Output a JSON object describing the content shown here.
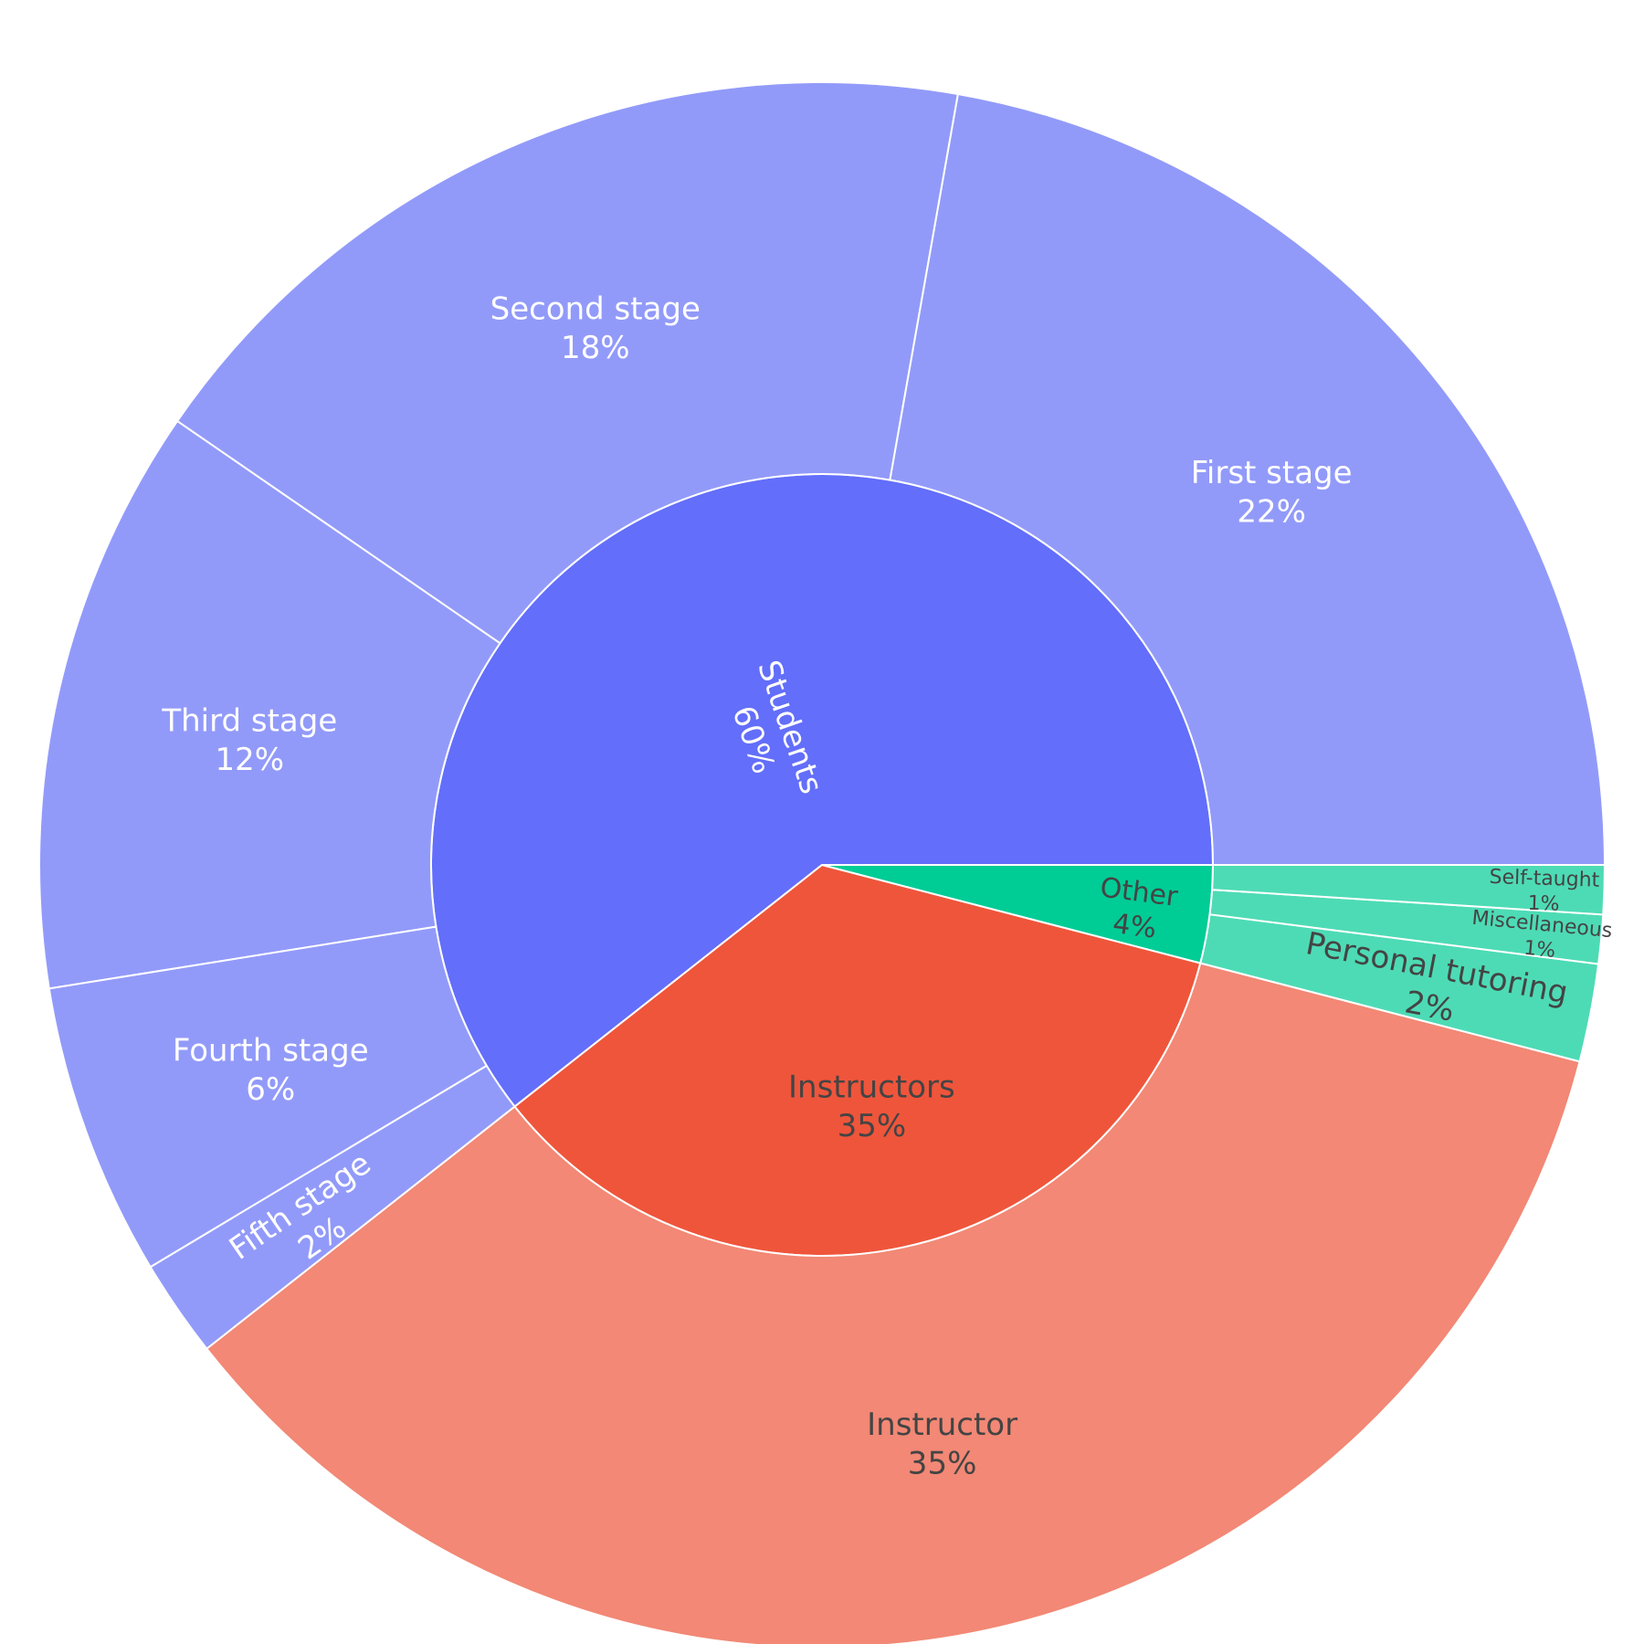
{
  "chart_data": {
    "type": "sunburst",
    "title": "",
    "parents": [
      {
        "name": "Students",
        "value": 60,
        "label": "Students",
        "pct": "60%",
        "color": "#636efa",
        "text_color": "#ffffff",
        "children": [
          {
            "name": "First stage",
            "value": 22,
            "label": "First stage",
            "pct": "22%",
            "color": "#929af9",
            "text_color": "#ffffff"
          },
          {
            "name": "Second stage",
            "value": 18,
            "label": "Second stage",
            "pct": "18%",
            "color": "#929af9",
            "text_color": "#ffffff"
          },
          {
            "name": "Third stage",
            "value": 12,
            "label": "Third stage",
            "pct": "12%",
            "color": "#929af9",
            "text_color": "#ffffff"
          },
          {
            "name": "Fourth stage",
            "value": 6,
            "label": "Fourth stage",
            "pct": "6%",
            "color": "#929af9",
            "text_color": "#ffffff"
          },
          {
            "name": "Fifth stage",
            "value": 2,
            "label": "Fifth stage",
            "pct": "2%",
            "color": "#929af9",
            "text_color": "#ffffff"
          }
        ]
      },
      {
        "name": "Instructors",
        "value": 35,
        "label": "Instructors",
        "pct": "35%",
        "color": "#ef553b",
        "text_color": "#444444",
        "children": [
          {
            "name": "Instructor",
            "value": 35,
            "label": "Instructor",
            "pct": "35%",
            "color": "#f28875",
            "text_color": "#444444"
          }
        ]
      },
      {
        "name": "Other",
        "value": 4,
        "label": "Other",
        "pct": "4%",
        "color": "#00cc96",
        "text_color": "#444444",
        "children": [
          {
            "name": "Personal tutoring",
            "value": 2,
            "label": "Personal tutoring",
            "pct": "2%",
            "color": "#4ddbb5",
            "text_color": "#444444"
          },
          {
            "name": "Miscellaneous",
            "value": 1,
            "label": "Miscellaneous",
            "pct": "1%",
            "color": "#4ddbb5",
            "text_color": "#444444"
          },
          {
            "name": "Self-taught",
            "value": 1,
            "label": "Self-taught",
            "pct": "1%",
            "color": "#4ddbb5",
            "text_color": "#444444"
          }
        ]
      }
    ]
  }
}
